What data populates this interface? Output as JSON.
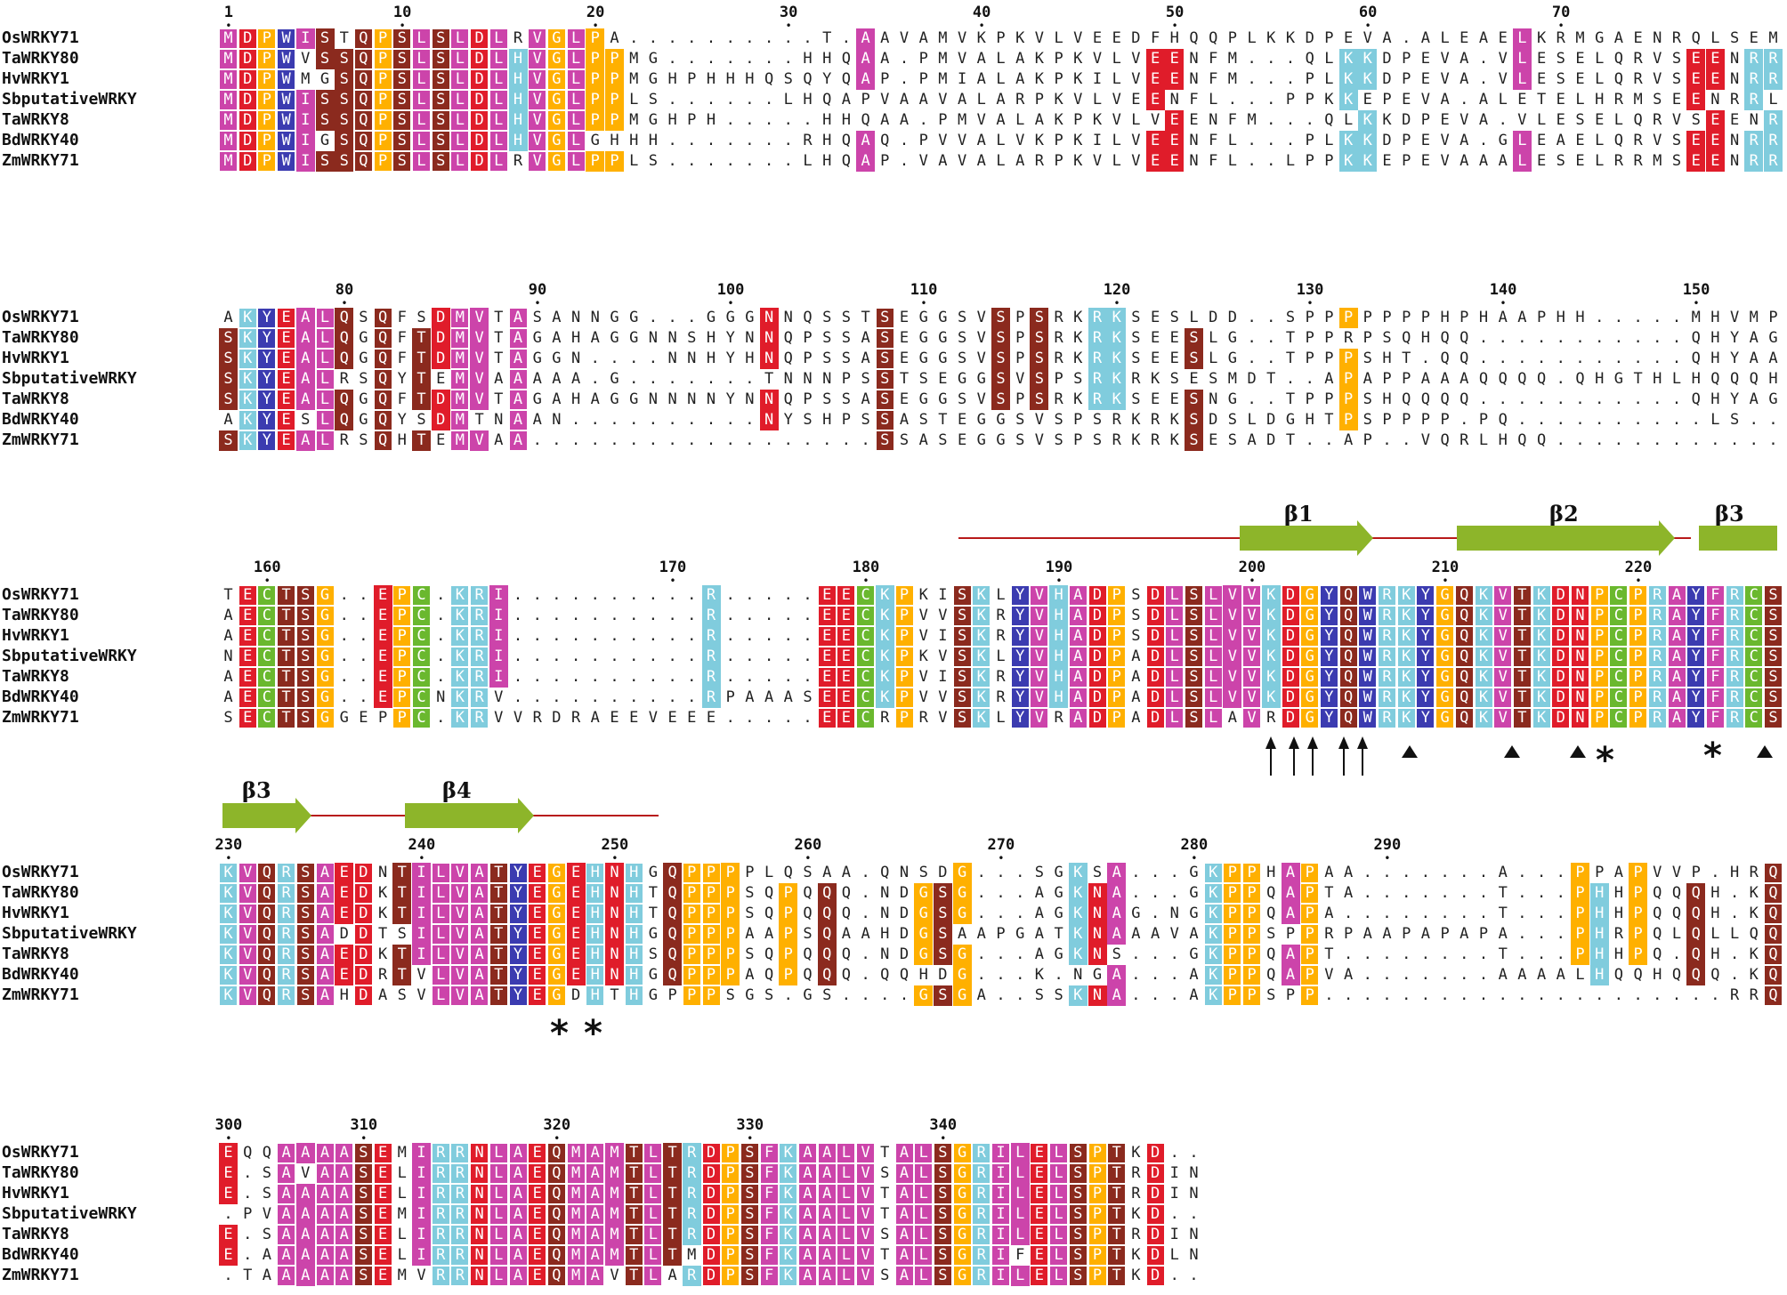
{
  "colors": {
    "magenta": "#cc44aa",
    "red": "#e01c2a",
    "brown": "#8b2a1e",
    "orange": "#ffb000",
    "cyan": "#80ccdd",
    "blue": "#3b3bb0",
    "green": "#6ab82e",
    "ss_line": "#b81a1a",
    "ss_arrow": "#8db52a"
  },
  "sequence_names": [
    "OsWRKY71",
    "TaWRKY80",
    "HvWRKY1",
    "SbputativeWRKY",
    "TaWRKY8",
    "BdWRKY40",
    "ZmWRKY71"
  ],
  "blocks": [
    {
      "ruler": [
        {
          "label": "1",
          "col": 0
        },
        {
          "label": "10",
          "col": 9
        },
        {
          "label": "20",
          "col": 19
        },
        {
          "label": "30",
          "col": 29
        },
        {
          "label": "40",
          "col": 39
        },
        {
          "label": "50",
          "col": 49
        },
        {
          "label": "60",
          "col": 59
        },
        {
          "label": "70",
          "col": 69
        }
      ],
      "rows": [
        "MDPWISTQPSLSLDLRVGLPA..........T.AAVAMVKPKVLVEEDFHQQPLKKDPEVA.ALEAELKRMGAENRQLSEMLAAVA",
        "MDPWVSSQPSLSLDLHVGLPPMG.......HHQAA.PMVALAKPKVLVEENFM...QLKKDPEVA.VLESELQRVSEENRRLGEMLREVA",
        "MDPWMGSQPSLSLDLHVGLPPMGHPHHHQSQYQAP.PMIALAKPKILVEENFM...PLKKDPEVA.VLESELQRVSEENRRLGEMLREVA",
        "MDPWISSQPSLSLDLHVGLPPLS......LHQAPVAAVALARPKVLVEENFL...PPKKEPEVA.ALETELHRMSEENRRLTEALAAVA",
        "MDPWISSQPSLSLDLHVGLPPMGHPH.....HHQAA.PMVALAKPKVLVEENFM...QLKKDPEVA.VLESELQRVSEENRRLGEMLREVA",
        "MDPWIGSQPSLSLDLHVGLGHHH.......RHQAQ.PVVALVKPKILVEENFL...PLKKDPEVA.GLEAELQRVSEENRRLGEMLREVA",
        "MDPWISSQPSLSLDLRVGLPPLS.......LHQAP.VAVALARPKVLVEENFL..LPPKKEPEVAAALESELRRMSEENRRLAEALAAVV"
      ]
    },
    {
      "ruler": [
        {
          "label": "80",
          "col": 6
        },
        {
          "label": "90",
          "col": 16
        },
        {
          "label": "100",
          "col": 26
        },
        {
          "label": "110",
          "col": 36
        },
        {
          "label": "120",
          "col": 46
        },
        {
          "label": "130",
          "col": 56
        },
        {
          "label": "140",
          "col": 66
        },
        {
          "label": "150",
          "col": 76
        }
      ],
      "rows": [
        "AKYEALQSQFSDMVTASANNGG...GGGNNQSSTSEGGSVSPSRKRKSESLDD..SPPPPPPPHPHAAPHH.....MHVMPGAAAAGYADQ",
        "SKYEALQGQFTDMVTAGAHAGGNNSHYNNQPSSASEGGSVSPSRKRKSEESLG..TPPRPSQHQQ...........QHYAGGLAYAAAPDQ",
        "SKYEALQGQFTDMVTAGGN....NNHYHNQPSSASEGGSVSPSRKRKSEESLG..TPPPSHT.QQ...........QHYAAGLAYAVAPDQ",
        "SKYEALRSQYTEMVAAAAA.G.......TNNNPSSTSEGGSVSPSRKRKSESMDT..APAPPAAAQQQQ.QHGTHLHQQQHPGL....AAPDQ",
        "SKYEALQGQFTDMVTAGAHAGGNNNNYNNQPSSASEGGSVSPSRKRKSEESNG..TPPPSHQQQQ...........QHYAGGLAYAAAPDQ",
        "AKYESLQGQYSDMTNAAN..........NYSHPSSASTEGGSVSPSRKRKSDSLDGHTPSPPPP.PQ..........LS.......FVPEQQ",
        "SKYEALRSQHTEMVAA..................SSASEGGSVSPSRKRKSESADT..AP..VQRLHQQ.............H.....AAADL"
      ]
    },
    {
      "ruler": [
        {
          "label": "160",
          "col": 2
        },
        {
          "label": "170",
          "col": 23
        },
        {
          "label": "180",
          "col": 33
        },
        {
          "label": "190",
          "col": 43
        },
        {
          "label": "200",
          "col": 53
        },
        {
          "label": "210",
          "col": 63
        },
        {
          "label": "220",
          "col": 73
        }
      ],
      "rows": [
        "TECTSG..EPC.KRI..........R.....EECKPKISKLYVHADPSDLSLVVKDGYQWRKYGQKVTKDNPCPRAYFRCSFAPACPVKK",
        "AECTSG..EPC.KRI..........R.....EECKPVVSKRYVHADPSDLSLVVKDGYQWRKYGQKVTKDNPCPRAYFRCSFAPGCPVKK",
        "AECTSG..EPC.KRI..........R.....EECKPVISKRYVHADPSDLSLVVKDGYQWRKYGQKVTKDNPCPRAYFRCSFAPGCPVKK",
        "NECTSG..EPC.KRI..........R.....EECKPKVSKLYVHADPADLSLVVKDGYQWRKYGQKVTKDNPCPRAYFRCSFAPACPVKK",
        "AECTSG..EPC.KRI..........R.....EECKPVISKRYVHADPADLSLVVKDGYQWRKYGQKVTKDNPCPRAYFRCSFAPGCPVKK",
        "AECTSG..EPCNKRV..........RPAAASEECKPVVSKRYVHADPADLSLVVKDGYQWRKYGQKVTKDNPCPRAYFRCSFAPGCPVKK",
        "SECTSGGEPPC.KRVVRDRAEEVEEE.....EECRPRVSKLYVRADPADLSLAVRDGYQWRKYGQKVTKDNPCPRAYFRCSFAPACPVKK"
      ]
    },
    {
      "ruler": [
        {
          "label": "230",
          "col": 0
        },
        {
          "label": "240",
          "col": 10
        },
        {
          "label": "250",
          "col": 20
        },
        {
          "label": "260",
          "col": 30
        },
        {
          "label": "270",
          "col": 40
        },
        {
          "label": "280",
          "col": 50
        },
        {
          "label": "290",
          "col": 60
        }
      ],
      "rows": [
        "KVQRSAEDNTILVATYEGEHNHGQPPPPLQSAA.QNSDG...SGKSA...GKPPHAPAA.......A...PPAPVVP.HRQHEPV.VNG",
        "KVQRSAEDKTILVATYEGEHNHTQPPPSQPQQQ.NDGSG...AGKNA...GKPPQAPTA.......T...PHHPQQQH.KQEAAAAAVSG",
        "KVQRSAEDKTILVATYEGEHNHTQPPPSQPQQQ.NDGSG...AGKNAG.NGKPPQAPA........T...PHHPQQQH.KQEAAAVVSG",
        "KVQRSADDTSILVATYEGEHNHGQPPPAAPSQAAHDGSAAPGATKNAAAVAKPPSPPRPAAPAPAPA...PHRPQLQLLQQEGVAMNVEQ",
        "KVQRSAEDKTILVATYEGEHNHSQPPPSQPQQQ.NDGSG...AGKNS...GKPPQAPT........T...PHHPQ.QH.KQEAAAAAVSG",
        "KVQRSAEDRTVLVATYEGEHNHGQPPPAQPQQQ.QQHDG...K.NGA...AKPPQAPVA.......AAAALHQQHQQQ.KQEQAAVVNG",
        "KVQRSAHDASVLVATYEGDHTHGPPPSGS.GS....GSGA..SSKNA...AKPPSPP.....................RRQEAAV.AV.."
      ]
    },
    {
      "ruler": [
        {
          "label": "300",
          "col": 0
        },
        {
          "label": "310",
          "col": 7
        },
        {
          "label": "320",
          "col": 17
        },
        {
          "label": "330",
          "col": 27
        },
        {
          "label": "340",
          "col": 37
        }
      ],
      "rows": [
        "EQQAAAASEMIRRNLAEQMAMTLTRDPSFKAALVTALSGRILELSPTKD..",
        "E.SAVAASELIRRNLAEQMAMTLTRDPSFKAALVSALSGRILELSPTRDIN",
        "E.SAAAASELIRRNLAEQMAMTLTRDPSFKAALVTALSGRILELSPTRDIN",
        ".PVAAAASEMIRRNLAEQMAMTLTRDPSFKAALVTALSGRILELSPTKD..",
        "E.SAAAASELIRRNLAEQMAMTLTRDPSFKAALVSALSGRILELSPTRDIN",
        "E.AAAAASELIRRNLAEQMAMTLTMDPSFKAALVTALSGRIFELSPTKDLN",
        ".TAAAAASEMVRRNLAEQMAVTLARDPSFKAALVSALSGRILELSPTKD.."
      ]
    }
  ],
  "secondary_structure": {
    "block3": [
      {
        "label": "β1"
      },
      {
        "label": "β2"
      },
      {
        "label": "β3"
      }
    ],
    "block4": [
      {
        "label": "β3"
      },
      {
        "label": "β4"
      }
    ]
  },
  "markers": {
    "block3_arrows": 5,
    "block3_triangles": 5,
    "block3_asterisks": 2,
    "block4_asterisks": 2
  }
}
